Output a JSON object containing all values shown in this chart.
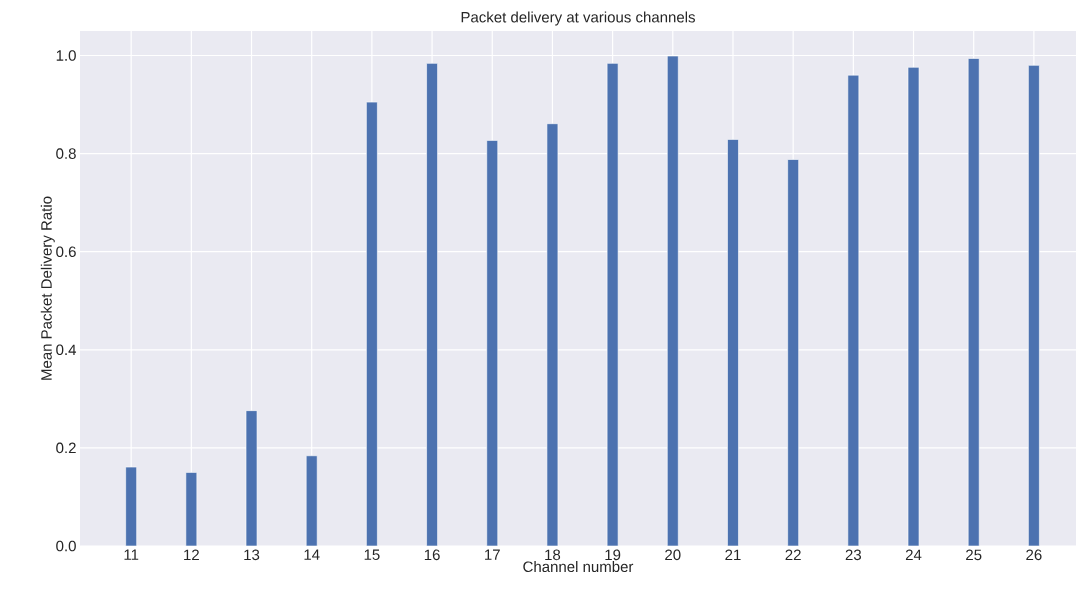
{
  "chart_data": {
    "type": "bar",
    "title": "Packet delivery at various channels",
    "xlabel": "Channel number",
    "ylabel": "Mean Packet Delivery Ratio",
    "categories": [
      "11",
      "12",
      "13",
      "14",
      "15",
      "16",
      "17",
      "18",
      "19",
      "20",
      "21",
      "22",
      "23",
      "24",
      "25",
      "26"
    ],
    "values": [
      0.161,
      0.15,
      0.276,
      0.184,
      0.905,
      0.984,
      0.827,
      0.861,
      0.984,
      0.999,
      0.829,
      0.788,
      0.96,
      0.976,
      0.994,
      0.98
    ],
    "color": "#4c72b0",
    "ylim": [
      0,
      1.05
    ],
    "yticks": [
      {
        "value": 0,
        "label": "0.0"
      },
      {
        "value": 0.2,
        "label": "0.2"
      },
      {
        "value": 0.4,
        "label": "0.4"
      },
      {
        "value": 0.6,
        "label": "0.6"
      },
      {
        "value": 0.8,
        "label": "0.8"
      },
      {
        "value": 1.0,
        "label": "1.0"
      }
    ],
    "grid": true
  }
}
